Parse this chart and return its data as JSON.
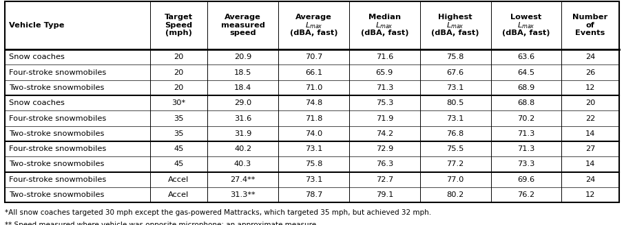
{
  "header_col_labels": [
    "Vehicle Type",
    "Target\nSpeed\n(mph)",
    "Average\nmeasured\nspeed",
    "Average\n$L_{max}$\n(dBA, fast)",
    "Median\n$L_{max}$\n(dBA, fast)",
    "Highest\n$L_{max}$\n(dBA, fast)",
    "Lowest\n$L_{max}$\n(dBA, fast)",
    "Number\nof\nEvents"
  ],
  "rows": [
    [
      "Snow coaches",
      "20",
      "20.9",
      "70.7",
      "71.6",
      "75.8",
      "63.6",
      "24"
    ],
    [
      "Four-stroke snowmobiles",
      "20",
      "18.5",
      "66.1",
      "65.9",
      "67.6",
      "64.5",
      "26"
    ],
    [
      "Two-stroke snowmobiles",
      "20",
      "18.4",
      "71.0",
      "71.3",
      "73.1",
      "68.9",
      "12"
    ],
    [
      "Snow coaches",
      "30*",
      "29.0",
      "74.8",
      "75.3",
      "80.5",
      "68.8",
      "20"
    ],
    [
      "Four-stroke snowmobiles",
      "35",
      "31.6",
      "71.8",
      "71.9",
      "73.1",
      "70.2",
      "22"
    ],
    [
      "Two-stroke snowmobiles",
      "35",
      "31.9",
      "74.0",
      "74.2",
      "76.8",
      "71.3",
      "14"
    ],
    [
      "Four-stroke snowmobiles",
      "45",
      "40.2",
      "73.1",
      "72.9",
      "75.5",
      "71.3",
      "27"
    ],
    [
      "Two-stroke snowmobiles",
      "45",
      "40.3",
      "75.8",
      "76.3",
      "77.2",
      "73.3",
      "14"
    ],
    [
      "Four-stroke snowmobiles",
      "Accel",
      "27.4**",
      "73.1",
      "72.7",
      "77.0",
      "69.6",
      "24"
    ],
    [
      "Two-stroke snowmobiles",
      "Accel",
      "31.3**",
      "78.7",
      "79.1",
      "80.2",
      "76.2",
      "12"
    ]
  ],
  "group_thick_after": [
    2,
    5,
    7
  ],
  "footnote1": "*All snow coaches targeted 30 mph except the gas-powered Mattracks, which targeted 35 mph, but achieved 32 mph.",
  "footnote2": "** Speed measured where vehicle was opposite microphone; an approximate measure.",
  "col_widths_rel": [
    2.15,
    0.85,
    1.05,
    1.05,
    1.05,
    1.05,
    1.05,
    0.85
  ],
  "text_color": "#000000",
  "border_color": "#000000",
  "data_font_size": 8.2,
  "header_font_size": 8.2,
  "footnote_font_size": 7.5,
  "fig_width": 9.06,
  "fig_height": 3.28,
  "dpi": 100
}
